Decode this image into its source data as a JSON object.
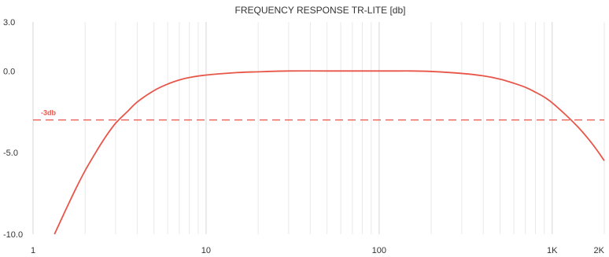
{
  "chart_data": {
    "type": "line",
    "title": "FREQUENCY RESPONSE TR-LITE [db]",
    "xlabel": "",
    "ylabel": "",
    "x_scale": "log",
    "xlim": [
      1,
      2000
    ],
    "ylim": [
      -10,
      3
    ],
    "x_ticks": [
      {
        "value": 1,
        "label": "1"
      },
      {
        "value": 10,
        "label": "10"
      },
      {
        "value": 100,
        "label": "100"
      },
      {
        "value": 1000,
        "label": "1K"
      },
      {
        "value": 2000,
        "label": "2K"
      }
    ],
    "y_ticks": [
      {
        "value": 3,
        "label": "3.0"
      },
      {
        "value": 0,
        "label": "0.0"
      },
      {
        "value": -5,
        "label": "-5.0"
      },
      {
        "value": -10,
        "label": "-10.0"
      }
    ],
    "grid": {
      "vertical": true,
      "horizontal": false
    },
    "series": [
      {
        "color": "#e8564a",
        "x": [
          1.33,
          1.5,
          1.75,
          2,
          2.3,
          2.6,
          3,
          3.5,
          4,
          5,
          6,
          7,
          8,
          10,
          15,
          20,
          30,
          50,
          100,
          150,
          200,
          300,
          400,
          500,
          600,
          700,
          800,
          900,
          1000,
          1200,
          1400,
          1600,
          1800,
          2000
        ],
        "y": [
          -10,
          -8.8,
          -7.3,
          -6.1,
          -5.0,
          -4.1,
          -3.2,
          -2.5,
          -1.9,
          -1.2,
          -0.8,
          -0.55,
          -0.4,
          -0.25,
          -0.1,
          -0.05,
          0,
          0,
          0,
          0,
          -0.03,
          -0.15,
          -0.3,
          -0.5,
          -0.75,
          -1.0,
          -1.3,
          -1.6,
          -1.95,
          -2.7,
          -3.4,
          -4.1,
          -4.8,
          -5.5
        ]
      }
    ],
    "reference_lines": [
      {
        "label": "-3db",
        "y": -3,
        "color": "#e8564a"
      }
    ]
  }
}
